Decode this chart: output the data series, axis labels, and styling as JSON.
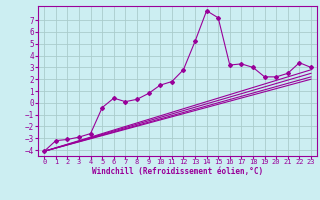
{
  "xlabel": "Windchill (Refroidissement éolien,°C)",
  "bg_color": "#cceef2",
  "line_color": "#990099",
  "grid_color": "#aacccc",
  "xlim": [
    -0.5,
    23.5
  ],
  "ylim": [
    -4.5,
    8.2
  ],
  "xticks": [
    0,
    1,
    2,
    3,
    4,
    5,
    6,
    7,
    8,
    9,
    10,
    11,
    12,
    13,
    14,
    15,
    16,
    17,
    18,
    19,
    20,
    21,
    22,
    23
  ],
  "yticks": [
    -4,
    -3,
    -2,
    -1,
    0,
    1,
    2,
    3,
    4,
    5,
    6,
    7
  ],
  "main_x": [
    0,
    1,
    2,
    3,
    4,
    5,
    6,
    7,
    8,
    9,
    10,
    11,
    12,
    13,
    14,
    15,
    16,
    17,
    18,
    19,
    20,
    21,
    22,
    23
  ],
  "main_y": [
    -4.1,
    -3.2,
    -3.1,
    -2.9,
    -2.6,
    -0.4,
    0.4,
    0.1,
    0.3,
    0.8,
    1.5,
    1.8,
    2.8,
    5.2,
    7.8,
    7.2,
    3.2,
    3.3,
    3.0,
    2.2,
    2.2,
    2.5,
    3.4,
    3.0
  ],
  "linear_lines": [
    {
      "x0": 0,
      "y0": -4.1,
      "x1": 23,
      "y1": 2.8
    },
    {
      "x0": 0,
      "y0": -4.1,
      "x1": 23,
      "y1": 2.5
    },
    {
      "x0": 0,
      "y0": -4.1,
      "x1": 23,
      "y1": 2.2
    },
    {
      "x0": 0,
      "y0": -4.1,
      "x1": 23,
      "y1": 2.0
    }
  ]
}
